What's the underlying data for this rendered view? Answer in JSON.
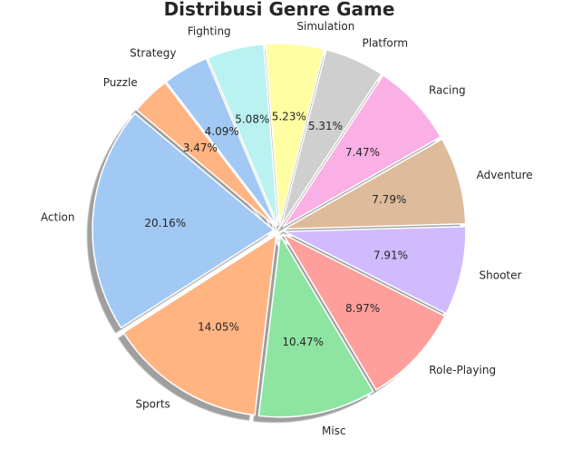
{
  "chart_data": {
    "type": "pie",
    "title": "Distribusi Genre Game",
    "slices": [
      {
        "label": "Action",
        "value": 20.16,
        "pct_label": "20.16%",
        "color": "#a1c9f4"
      },
      {
        "label": "Sports",
        "value": 14.05,
        "pct_label": "14.05%",
        "color": "#ffb482"
      },
      {
        "label": "Misc",
        "value": 10.47,
        "pct_label": "10.47%",
        "color": "#8de5a1"
      },
      {
        "label": "Role-Playing",
        "value": 8.97,
        "pct_label": "8.97%",
        "color": "#ff9f9b"
      },
      {
        "label": "Shooter",
        "value": 7.91,
        "pct_label": "7.91%",
        "color": "#d0bbff"
      },
      {
        "label": "Adventure",
        "value": 7.79,
        "pct_label": "7.79%",
        "color": "#debb9b"
      },
      {
        "label": "Racing",
        "value": 7.47,
        "pct_label": "7.47%",
        "color": "#fab0e4"
      },
      {
        "label": "Platform",
        "value": 5.31,
        "pct_label": "5.31%",
        "color": "#cfcfcf"
      },
      {
        "label": "Simulation",
        "value": 5.23,
        "pct_label": "5.23%",
        "color": "#fffea3"
      },
      {
        "label": "Fighting",
        "value": 5.08,
        "pct_label": "5.08%",
        "color": "#b9f2f0"
      },
      {
        "label": "Strategy",
        "value": 4.09,
        "pct_label": "4.09%",
        "color": "#a1c9f4"
      },
      {
        "label": "Puzzle",
        "value": 3.47,
        "pct_label": "3.47%",
        "color": "#ffb482"
      }
    ],
    "start_angle_deg": 140,
    "direction": "counterclockwise",
    "exploded": true,
    "shadow": true
  }
}
